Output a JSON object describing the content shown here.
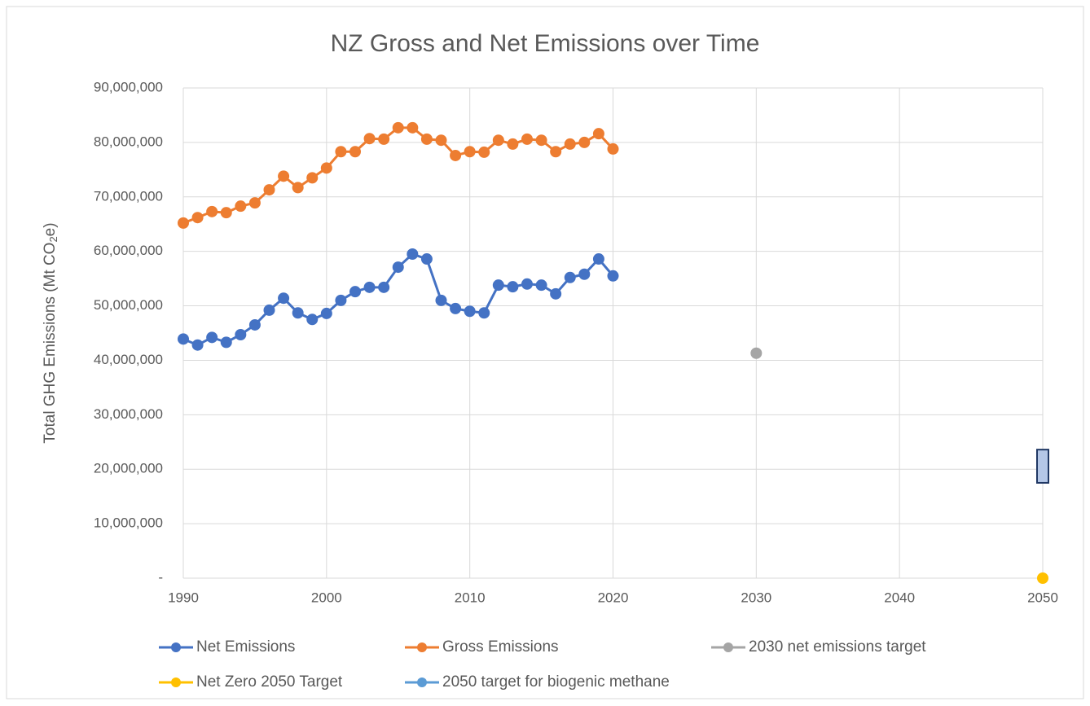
{
  "chart_data": {
    "type": "line",
    "title": "NZ Gross and Net Emissions over Time",
    "ylabel": [
      "Total GHG Emissions (Mt CO",
      "2",
      "e)"
    ],
    "xlim": [
      1990,
      2050
    ],
    "xticks": [
      1990,
      2000,
      2010,
      2020,
      2030,
      2040,
      2050
    ],
    "ylim": [
      0,
      90000000
    ],
    "yticks": [
      {
        "value": 0,
        "label": "-"
      },
      {
        "value": 10000000,
        "label": "10,000,000"
      },
      {
        "value": 20000000,
        "label": "20,000,000"
      },
      {
        "value": 30000000,
        "label": "30,000,000"
      },
      {
        "value": 40000000,
        "label": "40,000,000"
      },
      {
        "value": 50000000,
        "label": "50,000,000"
      },
      {
        "value": 60000000,
        "label": "60,000,000"
      },
      {
        "value": 70000000,
        "label": "70,000,000"
      },
      {
        "value": 80000000,
        "label": "80,000,000"
      },
      {
        "value": 90000000,
        "label": "90,000,000"
      }
    ],
    "grid": true,
    "legend": "bottom",
    "series": [
      {
        "name": "Net Emissions",
        "color": "#4472c4",
        "x": [
          1990,
          1991,
          1992,
          1993,
          1994,
          1995,
          1996,
          1997,
          1998,
          1999,
          2000,
          2001,
          2002,
          2003,
          2004,
          2005,
          2006,
          2007,
          2008,
          2009,
          2010,
          2011,
          2012,
          2013,
          2014,
          2015,
          2016,
          2017,
          2018,
          2019,
          2020
        ],
        "values": [
          43900000,
          42800000,
          44200000,
          43300000,
          44700000,
          46500000,
          49200000,
          51400000,
          48700000,
          47500000,
          48600000,
          51000000,
          52600000,
          53400000,
          53400000,
          57100000,
          59500000,
          58600000,
          51000000,
          49500000,
          49000000,
          48700000,
          53800000,
          53500000,
          54000000,
          53800000,
          52200000,
          55200000,
          55800000,
          58600000,
          55500000
        ]
      },
      {
        "name": "Gross Emissions",
        "color": "#ed7d31",
        "x": [
          1990,
          1991,
          1992,
          1993,
          1994,
          1995,
          1996,
          1997,
          1998,
          1999,
          2000,
          2001,
          2002,
          2003,
          2004,
          2005,
          2006,
          2007,
          2008,
          2009,
          2010,
          2011,
          2012,
          2013,
          2014,
          2015,
          2016,
          2017,
          2018,
          2019,
          2020
        ],
        "values": [
          65200000,
          66200000,
          67300000,
          67100000,
          68300000,
          68900000,
          71300000,
          73800000,
          71700000,
          73500000,
          75300000,
          78300000,
          78300000,
          80700000,
          80600000,
          82700000,
          82700000,
          80600000,
          80400000,
          77600000,
          78300000,
          78200000,
          80400000,
          79700000,
          80600000,
          80400000,
          78300000,
          79700000,
          80000000,
          81600000,
          78800000
        ]
      },
      {
        "name": "2030 net emissions target",
        "color": "#a5a5a5",
        "x": [
          2030
        ],
        "values": [
          41300000
        ]
      },
      {
        "name": "Net Zero 2050 Target",
        "color": "#ffc000",
        "x": [
          2050
        ],
        "values": [
          0
        ]
      },
      {
        "name": "2050 target for biogenic methane",
        "color": "#5b9bd5",
        "marker": "box",
        "x": [
          2050,
          2050
        ],
        "values": [
          17500000,
          23600000
        ]
      }
    ]
  }
}
